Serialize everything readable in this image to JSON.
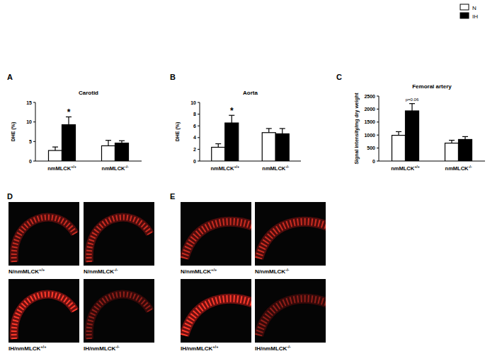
{
  "chart_data": [
    {
      "type": "bar",
      "title": "Carotid",
      "y_label": "DHE (%)",
      "categories": [
        "nmMLCK+/+",
        "nmMLCK-/-"
      ],
      "series": [
        {
          "name": "N",
          "color": "#ffffff",
          "values": [
            2.7,
            3.9
          ],
          "error": [
            0.9,
            1.4
          ]
        },
        {
          "name": "IH",
          "color": "#000000",
          "values": [
            9.3,
            4.6
          ],
          "error": [
            2.0,
            0.6
          ],
          "annotations": [
            "*",
            null
          ]
        }
      ],
      "ylim": [
        0,
        15
      ],
      "yticks": [
        0,
        5,
        10,
        15
      ],
      "grid": false,
      "legend": "top-right"
    },
    {
      "type": "bar",
      "title": "Aorta",
      "y_label": "DHE (%)",
      "categories": [
        "nmMLCK+/+",
        "nmMLCK-/-"
      ],
      "series": [
        {
          "name": "N",
          "color": "#ffffff",
          "values": [
            2.35,
            4.85
          ],
          "error": [
            0.6,
            0.7
          ]
        },
        {
          "name": "IH",
          "color": "#000000",
          "values": [
            6.5,
            4.65
          ],
          "error": [
            1.3,
            0.9
          ],
          "annotations": [
            "*",
            null
          ]
        }
      ],
      "ylim": [
        0,
        10
      ],
      "yticks": [
        0,
        2,
        4,
        6,
        8,
        10
      ],
      "grid": false
    },
    {
      "type": "bar",
      "title": "Femoral artery",
      "y_label": "Signal intensity/mg dry weight",
      "categories": [
        "nmMLCK+/+",
        "nmMLCK-/-"
      ],
      "series": [
        {
          "name": "N",
          "color": "#ffffff",
          "values": [
            990,
            690
          ],
          "error": [
            140,
            110
          ]
        },
        {
          "name": "IH",
          "color": "#000000",
          "values": [
            1930,
            830
          ],
          "error": [
            280,
            110
          ],
          "annotations": [
            "p=0.06",
            null
          ]
        }
      ],
      "ylim": [
        0,
        2500
      ],
      "yticks": [
        0,
        500,
        1000,
        1500,
        2000,
        2500
      ],
      "grid": false
    }
  ],
  "panel_letters": [
    "A",
    "B",
    "C",
    "D",
    "E"
  ],
  "image_panels": [
    {
      "captions": [
        "N/nmMLCK+/+",
        "N/nmMLCK-/-",
        "IH/nmMLCK+/+",
        "IH/nmMLCK-/-"
      ]
    },
    {
      "captions": [
        "N/nmMLCK+/+",
        "N/nmMLCK-/-",
        "IH/nmMLCK+/+",
        "IH/nmMLCK-/-"
      ]
    }
  ]
}
